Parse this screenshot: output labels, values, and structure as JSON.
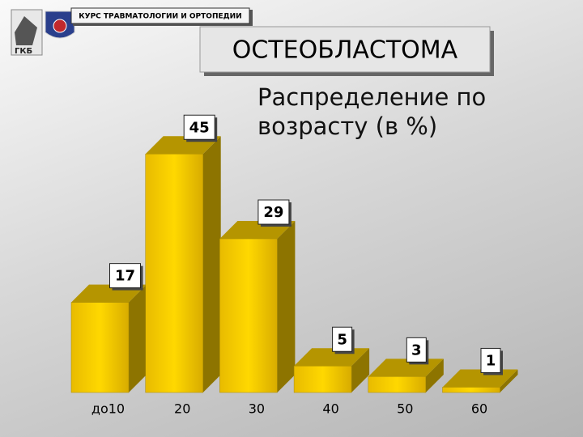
{
  "header": "КУРС ТРАВМАТОЛОГИИ И ОРТОПЕДИИ",
  "chart_data": {
    "type": "bar3d",
    "title": "ОСТЕОБЛАСТОМА",
    "subtitle": "Распределение по возрасту (в %)",
    "categories": [
      "до10",
      "20",
      "30",
      "40",
      "50",
      "60"
    ],
    "values": [
      17,
      45,
      29,
      5,
      3,
      1
    ],
    "color": "#f2c600"
  }
}
